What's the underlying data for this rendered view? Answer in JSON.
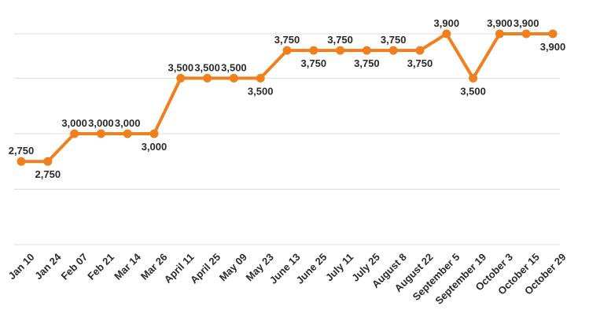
{
  "chart_data": {
    "type": "line",
    "title": "",
    "xlabel": "",
    "ylabel": "",
    "ylim": [
      0,
      4000
    ],
    "grid": true,
    "legend": "none",
    "categories": [
      "Jan 10",
      "Jan 24",
      "Feb 07",
      "Feb 21",
      "Mar 14",
      "Mar 26",
      "April 11",
      "April 25",
      "May 09",
      "May 23",
      "June 13",
      "June 25",
      "July 11",
      "July 25",
      "August 8",
      "August 22",
      "September 5",
      "September 19",
      "October 3",
      "October 15",
      "October 29"
    ],
    "series": [
      {
        "values": [
          2750,
          2750,
          3000,
          3000,
          3000,
          3000,
          3500,
          3500,
          3500,
          3500,
          3750,
          3750,
          3750,
          3750,
          3750,
          3750,
          3900,
          3500,
          3900,
          3900,
          3900
        ],
        "labels": [
          "2,750",
          "2,750",
          "3,000",
          "3,000",
          "3,000",
          "3,000",
          "3,500",
          "3,500",
          "3,500",
          "3,500",
          "3,750",
          "3,750",
          "3,750",
          "3,750",
          "3,750",
          "3,750",
          "3,900",
          "3,500",
          "3,900",
          "3,900",
          "3,900"
        ],
        "label_position": [
          "above",
          "below",
          "above",
          "above",
          "above",
          "below",
          "above",
          "above",
          "above",
          "below",
          "above",
          "below",
          "above",
          "below",
          "above",
          "below",
          "above",
          "below",
          "above",
          "above",
          "below"
        ],
        "color": "#f07f1d"
      }
    ]
  }
}
